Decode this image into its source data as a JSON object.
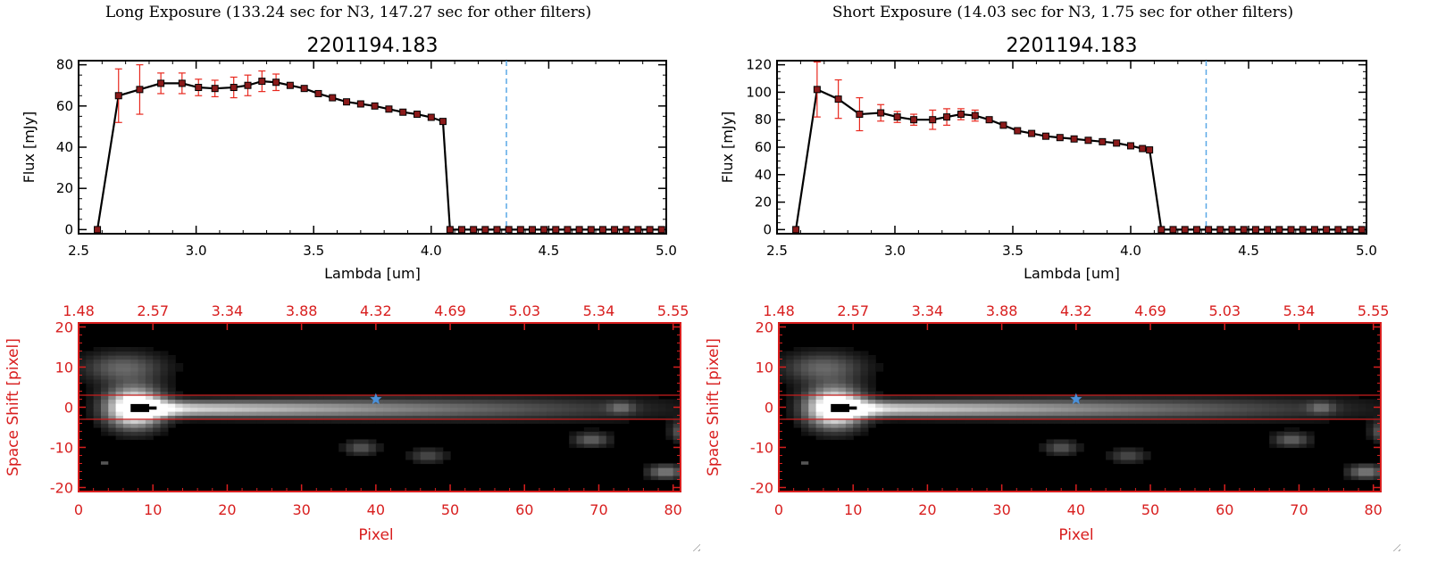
{
  "panels": [
    {
      "heading": "Long Exposure (133.24 sec for N3, 147.27 sec for other filters)",
      "chart_data": {
        "type": "line",
        "title": "2201194.183",
        "xlabel": "Lambda [um]",
        "ylabel": "Flux [mJy]",
        "xlim": [
          2.5,
          5.0
        ],
        "ylim": [
          -2,
          82
        ],
        "xticks": [
          2.5,
          3.0,
          3.5,
          4.0,
          4.5,
          5.0
        ],
        "xtick_labels": [
          "2.5",
          "3.0",
          "3.5",
          "4.0",
          "4.5",
          "5.0"
        ],
        "yticks": [
          0,
          20,
          40,
          60,
          80
        ],
        "ytick_labels": [
          "0",
          "20",
          "40",
          "60",
          "80"
        ],
        "reference_line_x": 4.32,
        "series": [
          {
            "x": [
              2.58,
              2.67,
              2.76,
              2.85,
              2.94,
              3.01,
              3.08,
              3.16,
              3.22,
              3.28,
              3.34,
              3.4,
              3.46,
              3.52,
              3.58,
              3.64,
              3.7,
              3.76,
              3.82,
              3.88,
              3.94,
              4.0,
              4.05,
              4.08,
              4.13,
              4.18,
              4.23,
              4.28,
              4.33,
              4.38,
              4.43,
              4.48,
              4.53,
              4.58,
              4.63,
              4.68,
              4.73,
              4.78,
              4.83,
              4.88,
              4.93,
              4.98
            ],
            "y": [
              0,
              65,
              68,
              71,
              71,
              69,
              68.5,
              69,
              70,
              72,
              71.5,
              70,
              68.5,
              66,
              64,
              62,
              61,
              60,
              58.5,
              57,
              56,
              54.5,
              52.5,
              0,
              0,
              0,
              0,
              0,
              0,
              0,
              0,
              0,
              0,
              0,
              0,
              0,
              0,
              0,
              0,
              0,
              0,
              0
            ],
            "yerr": [
              0,
              13,
              12,
              5,
              5,
              4,
              4,
              5,
              5,
              5,
              4,
              0,
              0,
              0,
              0,
              0,
              0,
              0,
              0,
              0,
              0,
              0,
              0,
              0,
              0,
              0,
              0,
              0,
              0,
              0,
              0,
              0,
              0,
              0,
              0,
              0,
              0,
              0,
              0,
              0,
              0,
              0
            ]
          }
        ]
      },
      "image_panel": {
        "type": "heatmap",
        "xlabel": "Pixel",
        "ylabel": "Space Shift [pixel]",
        "xlim": [
          0,
          81
        ],
        "ylim": [
          -21,
          21
        ],
        "xticks": [
          "0",
          "10",
          "20",
          "30",
          "40",
          "50",
          "60",
          "70",
          "80"
        ],
        "yticks": [
          "-20",
          "-10",
          "0",
          "10",
          "20"
        ],
        "top_ticks": [
          "1.48",
          "2.57",
          "3.34",
          "3.88",
          "4.32",
          "4.69",
          "5.03",
          "5.34",
          "5.55"
        ],
        "aperture_lines_y": [
          3,
          -3
        ],
        "marker": {
          "x": 40,
          "y": 2
        }
      }
    },
    {
      "heading": "Short Exposure (14.03 sec for N3, 1.75 sec for other filters)",
      "chart_data": {
        "type": "line",
        "title": "2201194.183",
        "xlabel": "Lambda [um]",
        "ylabel": "Flux [mJy]",
        "xlim": [
          2.5,
          5.0
        ],
        "ylim": [
          -3,
          123
        ],
        "xticks": [
          2.5,
          3.0,
          3.5,
          4.0,
          4.5,
          5.0
        ],
        "xtick_labels": [
          "2.5",
          "3.0",
          "3.5",
          "4.0",
          "4.5",
          "5.0"
        ],
        "yticks": [
          0,
          20,
          40,
          60,
          80,
          100,
          120
        ],
        "ytick_labels": [
          "0",
          "20",
          "40",
          "60",
          "80",
          "100",
          "120"
        ],
        "reference_line_x": 4.32,
        "series": [
          {
            "x": [
              2.58,
              2.67,
              2.76,
              2.85,
              2.94,
              3.01,
              3.08,
              3.16,
              3.22,
              3.28,
              3.34,
              3.4,
              3.46,
              3.52,
              3.58,
              3.64,
              3.7,
              3.76,
              3.82,
              3.88,
              3.94,
              4.0,
              4.05,
              4.08,
              4.13,
              4.18,
              4.23,
              4.28,
              4.33,
              4.38,
              4.43,
              4.48,
              4.53,
              4.58,
              4.63,
              4.68,
              4.73,
              4.78,
              4.83,
              4.88,
              4.93,
              4.98
            ],
            "y": [
              0,
              102,
              95,
              84,
              85,
              82,
              80,
              80,
              82,
              84,
              83,
              80,
              76,
              72,
              70,
              68,
              67,
              66,
              65,
              64,
              63,
              61,
              59,
              58,
              0,
              0,
              0,
              0,
              0,
              0,
              0,
              0,
              0,
              0,
              0,
              0,
              0,
              0,
              0,
              0,
              0,
              0
            ],
            "yerr": [
              0,
              20,
              14,
              12,
              6,
              4,
              4,
              7,
              6,
              4,
              4,
              0,
              0,
              0,
              0,
              0,
              0,
              0,
              0,
              0,
              0,
              0,
              0,
              0,
              0,
              0,
              0,
              0,
              0,
              0,
              0,
              0,
              0,
              0,
              0,
              0,
              0,
              0,
              0,
              0,
              0,
              0
            ]
          }
        ]
      },
      "image_panel": {
        "type": "heatmap",
        "xlabel": "Pixel",
        "ylabel": "Space Shift [pixel]",
        "xlim": [
          0,
          81
        ],
        "ylim": [
          -21,
          21
        ],
        "xticks": [
          "0",
          "10",
          "20",
          "30",
          "40",
          "50",
          "60",
          "70",
          "80"
        ],
        "yticks": [
          "-20",
          "-10",
          "0",
          "10",
          "20"
        ],
        "top_ticks": [
          "1.48",
          "2.57",
          "3.34",
          "3.88",
          "4.32",
          "4.69",
          "5.03",
          "5.34",
          "5.55"
        ],
        "aperture_lines_y": [
          3,
          -3
        ],
        "marker": {
          "x": 40,
          "y": 2
        }
      }
    }
  ],
  "colors": {
    "line": "#000000",
    "marker_fill": "#8b1a1a",
    "error_bar": "#e8281e",
    "reference_line": "#5aa8e6",
    "image_axes": "#d81e1e",
    "image_background": "#000000",
    "aperture": "#c81e1e",
    "star_marker": "#4a90d9"
  }
}
